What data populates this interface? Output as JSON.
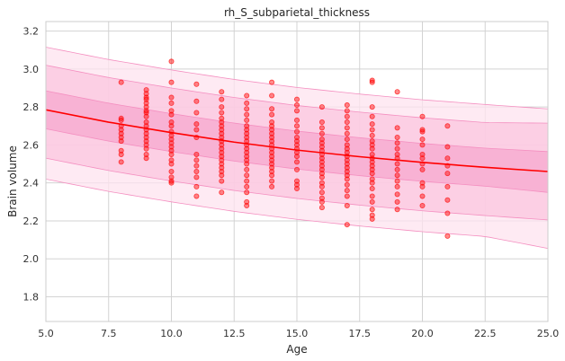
{
  "chart_data": {
    "type": "scatter",
    "title": "rh_S_subparietal_thickness",
    "xlabel": "Age",
    "ylabel": "Brain volume",
    "xlim": [
      5.0,
      25.0
    ],
    "ylim": [
      1.67,
      3.25
    ],
    "x_ticks": [
      5.0,
      7.5,
      10.0,
      12.5,
      15.0,
      17.5,
      20.0,
      22.5,
      25.0
    ],
    "x_tick_labels": [
      "5.0",
      "7.5",
      "10.0",
      "12.5",
      "15.0",
      "17.5",
      "20.0",
      "22.5",
      "25.0"
    ],
    "y_ticks": [
      1.8,
      2.0,
      2.2,
      2.4,
      2.6,
      2.8,
      3.0,
      3.2
    ],
    "y_tick_labels": [
      "1.8",
      "2.0",
      "2.2",
      "2.4",
      "2.6",
      "2.8",
      "3.0",
      "3.2"
    ],
    "grid": true,
    "colors": {
      "points": "#ff0000",
      "mean_line": "#ff0000",
      "band_inner": "#f7a8cf",
      "band_middle": "#fbc6df",
      "band_outer": "#fde3ef",
      "band_edge": "#f48fc0",
      "grid": "#d3d3d3",
      "spine": "#cccccc"
    },
    "mean_curve": {
      "x": [
        5,
        7.5,
        10,
        12.5,
        15,
        17.5,
        20,
        22.5,
        25
      ],
      "y": [
        2.785,
        2.72,
        2.665,
        2.615,
        2.573,
        2.538,
        2.508,
        2.482,
        2.46
      ]
    },
    "bands": [
      {
        "x": [
          5,
          7.5,
          10,
          12.5,
          15,
          17.5,
          20,
          22.5,
          25
        ],
        "upper": [
          3.115,
          3.05,
          2.995,
          2.945,
          2.903,
          2.868,
          2.838,
          2.813,
          2.79
        ],
        "lower": [
          2.42,
          2.355,
          2.3,
          2.25,
          2.208,
          2.173,
          2.143,
          2.118,
          2.055
        ]
      },
      {
        "x": [
          5,
          7.5,
          10,
          12.5,
          15,
          17.5,
          20,
          22.5,
          25
        ],
        "upper": [
          3.02,
          2.955,
          2.9,
          2.85,
          2.808,
          2.773,
          2.743,
          2.718,
          2.715
        ],
        "lower": [
          2.53,
          2.465,
          2.41,
          2.36,
          2.318,
          2.283,
          2.253,
          2.228,
          2.205
        ]
      },
      {
        "x": [
          5,
          7.5,
          10,
          12.5,
          15,
          17.5,
          20,
          22.5,
          25
        ],
        "upper": [
          2.885,
          2.82,
          2.765,
          2.715,
          2.673,
          2.638,
          2.608,
          2.583,
          2.565
        ],
        "lower": [
          2.685,
          2.62,
          2.565,
          2.515,
          2.473,
          2.438,
          2.408,
          2.383,
          2.35
        ]
      }
    ],
    "points": [
      [
        8,
        2.93
      ],
      [
        8,
        2.74
      ],
      [
        8,
        2.73
      ],
      [
        8,
        2.7
      ],
      [
        8,
        2.68
      ],
      [
        8,
        2.66
      ],
      [
        8,
        2.64
      ],
      [
        8,
        2.62
      ],
      [
        8,
        2.57
      ],
      [
        8,
        2.55
      ],
      [
        8,
        2.51
      ],
      [
        9,
        2.89
      ],
      [
        9,
        2.87
      ],
      [
        9,
        2.85
      ],
      [
        9,
        2.84
      ],
      [
        9,
        2.82
      ],
      [
        9,
        2.8
      ],
      [
        9,
        2.78
      ],
      [
        9,
        2.77
      ],
      [
        9,
        2.75
      ],
      [
        9,
        2.72
      ],
      [
        9,
        2.7
      ],
      [
        9,
        2.68
      ],
      [
        9,
        2.66
      ],
      [
        9,
        2.64
      ],
      [
        9,
        2.62
      ],
      [
        9,
        2.6
      ],
      [
        9,
        2.58
      ],
      [
        9,
        2.55
      ],
      [
        9,
        2.53
      ],
      [
        10,
        3.04
      ],
      [
        10,
        2.93
      ],
      [
        10,
        2.85
      ],
      [
        10,
        2.82
      ],
      [
        10,
        2.78
      ],
      [
        10,
        2.76
      ],
      [
        10,
        2.72
      ],
      [
        10,
        2.7
      ],
      [
        10,
        2.67
      ],
      [
        10,
        2.65
      ],
      [
        10,
        2.63
      ],
      [
        10,
        2.61
      ],
      [
        10,
        2.59
      ],
      [
        10,
        2.57
      ],
      [
        10,
        2.55
      ],
      [
        10,
        2.52
      ],
      [
        10,
        2.5
      ],
      [
        10,
        2.46
      ],
      [
        10,
        2.43
      ],
      [
        10,
        2.41
      ],
      [
        10,
        2.4
      ],
      [
        11,
        2.92
      ],
      [
        11,
        2.83
      ],
      [
        11,
        2.77
      ],
      [
        11,
        2.71
      ],
      [
        11,
        2.68
      ],
      [
        11,
        2.64
      ],
      [
        11,
        2.55
      ],
      [
        11,
        2.52
      ],
      [
        11,
        2.49
      ],
      [
        11,
        2.46
      ],
      [
        11,
        2.43
      ],
      [
        11,
        2.38
      ],
      [
        11,
        2.33
      ],
      [
        12,
        2.88
      ],
      [
        12,
        2.84
      ],
      [
        12,
        2.8
      ],
      [
        12,
        2.77
      ],
      [
        12,
        2.74
      ],
      [
        12,
        2.72
      ],
      [
        12,
        2.7
      ],
      [
        12,
        2.68
      ],
      [
        12,
        2.66
      ],
      [
        12,
        2.64
      ],
      [
        12,
        2.62
      ],
      [
        12,
        2.6
      ],
      [
        12,
        2.58
      ],
      [
        12,
        2.56
      ],
      [
        12,
        2.54
      ],
      [
        12,
        2.52
      ],
      [
        12,
        2.5
      ],
      [
        12,
        2.48
      ],
      [
        12,
        2.46
      ],
      [
        12,
        2.44
      ],
      [
        12,
        2.41
      ],
      [
        12,
        2.35
      ],
      [
        13,
        2.86
      ],
      [
        13,
        2.82
      ],
      [
        13,
        2.79
      ],
      [
        13,
        2.76
      ],
      [
        13,
        2.73
      ],
      [
        13,
        2.7
      ],
      [
        13,
        2.68
      ],
      [
        13,
        2.66
      ],
      [
        13,
        2.64
      ],
      [
        13,
        2.62
      ],
      [
        13,
        2.6
      ],
      [
        13,
        2.58
      ],
      [
        13,
        2.56
      ],
      [
        13,
        2.54
      ],
      [
        13,
        2.52
      ],
      [
        13,
        2.5
      ],
      [
        13,
        2.47
      ],
      [
        13,
        2.44
      ],
      [
        13,
        2.41
      ],
      [
        13,
        2.38
      ],
      [
        13,
        2.35
      ],
      [
        13,
        2.3
      ],
      [
        13,
        2.28
      ],
      [
        14,
        2.93
      ],
      [
        14,
        2.86
      ],
      [
        14,
        2.79
      ],
      [
        14,
        2.76
      ],
      [
        14,
        2.72
      ],
      [
        14,
        2.7
      ],
      [
        14,
        2.68
      ],
      [
        14,
        2.66
      ],
      [
        14,
        2.64
      ],
      [
        14,
        2.62
      ],
      [
        14,
        2.6
      ],
      [
        14,
        2.58
      ],
      [
        14,
        2.56
      ],
      [
        14,
        2.54
      ],
      [
        14,
        2.52
      ],
      [
        14,
        2.5
      ],
      [
        14,
        2.48
      ],
      [
        14,
        2.46
      ],
      [
        14,
        2.44
      ],
      [
        14,
        2.41
      ],
      [
        14,
        2.38
      ],
      [
        15,
        2.84
      ],
      [
        15,
        2.81
      ],
      [
        15,
        2.78
      ],
      [
        15,
        2.73
      ],
      [
        15,
        2.7
      ],
      [
        15,
        2.67
      ],
      [
        15,
        2.64
      ],
      [
        15,
        2.62
      ],
      [
        15,
        2.6
      ],
      [
        15,
        2.58
      ],
      [
        15,
        2.56
      ],
      [
        15,
        2.54
      ],
      [
        15,
        2.51
      ],
      [
        15,
        2.47
      ],
      [
        15,
        2.41
      ],
      [
        15,
        2.39
      ],
      [
        15,
        2.37
      ],
      [
        16,
        2.8
      ],
      [
        16,
        2.72
      ],
      [
        16,
        2.69
      ],
      [
        16,
        2.66
      ],
      [
        16,
        2.63
      ],
      [
        16,
        2.61
      ],
      [
        16,
        2.59
      ],
      [
        16,
        2.57
      ],
      [
        16,
        2.55
      ],
      [
        16,
        2.53
      ],
      [
        16,
        2.51
      ],
      [
        16,
        2.49
      ],
      [
        16,
        2.47
      ],
      [
        16,
        2.45
      ],
      [
        16,
        2.43
      ],
      [
        16,
        2.4
      ],
      [
        16,
        2.38
      ],
      [
        16,
        2.35
      ],
      [
        16,
        2.32
      ],
      [
        16,
        2.3
      ],
      [
        16,
        2.27
      ],
      [
        17,
        2.81
      ],
      [
        17,
        2.78
      ],
      [
        17,
        2.75
      ],
      [
        17,
        2.72
      ],
      [
        17,
        2.69
      ],
      [
        17,
        2.66
      ],
      [
        17,
        2.63
      ],
      [
        17,
        2.6
      ],
      [
        17,
        2.58
      ],
      [
        17,
        2.56
      ],
      [
        17,
        2.54
      ],
      [
        17,
        2.52
      ],
      [
        17,
        2.5
      ],
      [
        17,
        2.48
      ],
      [
        17,
        2.46
      ],
      [
        17,
        2.44
      ],
      [
        17,
        2.42
      ],
      [
        17,
        2.39
      ],
      [
        17,
        2.36
      ],
      [
        17,
        2.33
      ],
      [
        17,
        2.28
      ],
      [
        17,
        2.18
      ],
      [
        18,
        2.94
      ],
      [
        18,
        2.93
      ],
      [
        18,
        2.8
      ],
      [
        18,
        2.75
      ],
      [
        18,
        2.71
      ],
      [
        18,
        2.68
      ],
      [
        18,
        2.65
      ],
      [
        18,
        2.62
      ],
      [
        18,
        2.6
      ],
      [
        18,
        2.58
      ],
      [
        18,
        2.55
      ],
      [
        18,
        2.53
      ],
      [
        18,
        2.51
      ],
      [
        18,
        2.49
      ],
      [
        18,
        2.47
      ],
      [
        18,
        2.45
      ],
      [
        18,
        2.42
      ],
      [
        18,
        2.4
      ],
      [
        18,
        2.37
      ],
      [
        18,
        2.33
      ],
      [
        18,
        2.3
      ],
      [
        18,
        2.26
      ],
      [
        18,
        2.23
      ],
      [
        18,
        2.21
      ],
      [
        19,
        2.88
      ],
      [
        19,
        2.69
      ],
      [
        19,
        2.64
      ],
      [
        19,
        2.61
      ],
      [
        19,
        2.58
      ],
      [
        19,
        2.55
      ],
      [
        19,
        2.53
      ],
      [
        19,
        2.5
      ],
      [
        19,
        2.47
      ],
      [
        19,
        2.44
      ],
      [
        19,
        2.41
      ],
      [
        19,
        2.38
      ],
      [
        19,
        2.34
      ],
      [
        19,
        2.3
      ],
      [
        19,
        2.26
      ],
      [
        20,
        2.75
      ],
      [
        20,
        2.68
      ],
      [
        20,
        2.67
      ],
      [
        20,
        2.63
      ],
      [
        20,
        2.6
      ],
      [
        20,
        2.55
      ],
      [
        20,
        2.53
      ],
      [
        20,
        2.5
      ],
      [
        20,
        2.47
      ],
      [
        20,
        2.4
      ],
      [
        20,
        2.38
      ],
      [
        20,
        2.33
      ],
      [
        20,
        2.28
      ],
      [
        21,
        2.7
      ],
      [
        21,
        2.59
      ],
      [
        21,
        2.53
      ],
      [
        21,
        2.49
      ],
      [
        21,
        2.45
      ],
      [
        21,
        2.38
      ],
      [
        21,
        2.31
      ],
      [
        21,
        2.24
      ],
      [
        21,
        2.12
      ]
    ]
  }
}
